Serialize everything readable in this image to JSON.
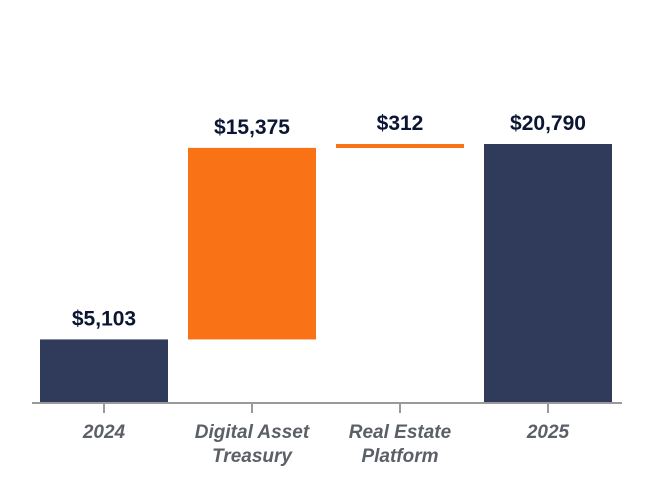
{
  "chart_data": {
    "type": "bar",
    "subtype": "waterfall",
    "title": "",
    "xlabel": "",
    "ylabel": "",
    "ylim": [
      0,
      20790
    ],
    "grid": false,
    "legend": "none",
    "categories": [
      "2024",
      "Digital Asset Treasury",
      "Real Estate Platform",
      "2025"
    ],
    "category_lines": [
      [
        "2024"
      ],
      [
        "Digital Asset",
        "Treasury"
      ],
      [
        "Real Estate",
        "Platform"
      ],
      [
        "2025"
      ]
    ],
    "values": [
      5103,
      15375,
      312,
      20790
    ],
    "value_labels": [
      "$5,103",
      "$15,375",
      "$312",
      "$20,790"
    ],
    "bar_kinds": [
      "total",
      "increase",
      "increase",
      "total"
    ],
    "colors": {
      "total": "#303b5c",
      "increase": "#f97316",
      "axis": "#9a9a9a",
      "label": "#0b1633",
      "category": "#5b5f66"
    }
  }
}
